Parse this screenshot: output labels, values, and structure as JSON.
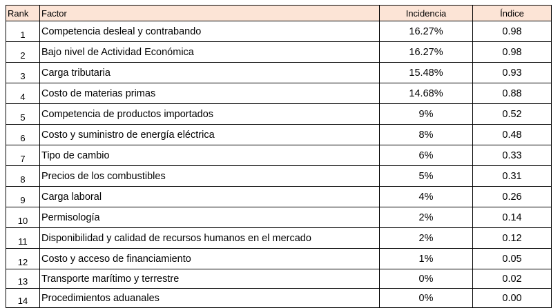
{
  "table": {
    "header": [
      "Rank",
      "Factor",
      "Incidencia",
      "Índice"
    ],
    "rows": [
      [
        "1",
        "Competencia desleal y contrabando",
        "16.27%",
        "0.98"
      ],
      [
        "2",
        "Bajo nivel de Actividad Económica",
        "16.27%",
        "0.98"
      ],
      [
        "3",
        "Carga tributaria",
        "15.48%",
        "0.93"
      ],
      [
        "4",
        "Costo de materias primas",
        "14.68%",
        "0.88"
      ],
      [
        "5",
        "Competencia de productos importados",
        "9%",
        "0.52"
      ],
      [
        "6",
        "Costo y suministro de energía eléctrica",
        "8%",
        "0.48"
      ],
      [
        "7",
        "Tipo de cambio",
        "6%",
        "0.33"
      ],
      [
        "8",
        "Precios de los combustibles",
        "5%",
        "0.31"
      ],
      [
        "9",
        "Carga laboral",
        "4%",
        "0.26"
      ],
      [
        "10",
        "Permisología",
        "2%",
        "0.14"
      ],
      [
        "11",
        "Disponibilidad y calidad de recursos humanos en el mercado",
        "2%",
        "0.12"
      ],
      [
        "12",
        "Costo y acceso de financiamiento",
        "1%",
        "0.05"
      ],
      [
        "13",
        "Transporte marítimo y terrestre",
        "0%",
        "0.02"
      ],
      [
        "14",
        "Procedimientos aduanales",
        "0%",
        "0.00"
      ]
    ]
  }
}
